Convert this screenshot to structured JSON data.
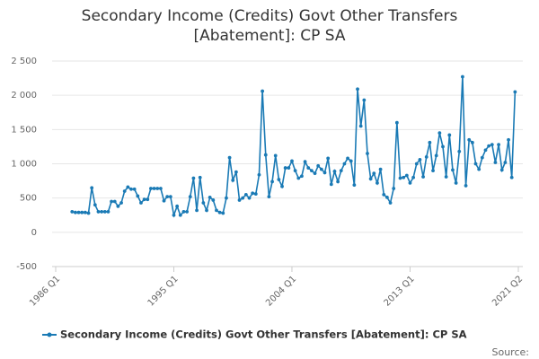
{
  "chart_data": {
    "type": "line",
    "title": [
      "Secondary Income (Credits) Govt Other Transfers",
      "[Abatement]: CP SA"
    ],
    "source": "Source:",
    "x": [
      "1987 Q2",
      "1987 Q3",
      "1987 Q4",
      "1988 Q1",
      "1988 Q2",
      "1988 Q3",
      "1988 Q4",
      "1989 Q1",
      "1989 Q2",
      "1989 Q3",
      "1989 Q4",
      "1990 Q1",
      "1990 Q2",
      "1990 Q3",
      "1990 Q4",
      "1991 Q1",
      "1991 Q2",
      "1991 Q3",
      "1991 Q4",
      "1992 Q1",
      "1992 Q2",
      "1992 Q3",
      "1992 Q4",
      "1993 Q1",
      "1993 Q2",
      "1993 Q3",
      "1993 Q4",
      "1994 Q1",
      "1994 Q2",
      "1994 Q3",
      "1994 Q4",
      "1995 Q1",
      "1995 Q2",
      "1995 Q3",
      "1995 Q4",
      "1996 Q1",
      "1996 Q2",
      "1996 Q3",
      "1996 Q4",
      "1997 Q1",
      "1997 Q2",
      "1997 Q3",
      "1997 Q4",
      "1998 Q1",
      "1998 Q2",
      "1998 Q3",
      "1998 Q4",
      "1999 Q1",
      "1999 Q2",
      "1999 Q3",
      "1999 Q4",
      "2000 Q1",
      "2000 Q2",
      "2000 Q3",
      "2000 Q4",
      "2001 Q1",
      "2001 Q2",
      "2001 Q3",
      "2001 Q4",
      "2002 Q1",
      "2002 Q2",
      "2002 Q3",
      "2002 Q4",
      "2003 Q1",
      "2003 Q2",
      "2003 Q3",
      "2003 Q4",
      "2004 Q1",
      "2004 Q2",
      "2004 Q3",
      "2004 Q4",
      "2005 Q1",
      "2005 Q2",
      "2005 Q3",
      "2005 Q4",
      "2006 Q1",
      "2006 Q2",
      "2006 Q3",
      "2006 Q4",
      "2007 Q1",
      "2007 Q2",
      "2007 Q3",
      "2007 Q4",
      "2008 Q1",
      "2008 Q2",
      "2008 Q3",
      "2008 Q4",
      "2009 Q1",
      "2009 Q2",
      "2009 Q3",
      "2009 Q4",
      "2010 Q1",
      "2010 Q2",
      "2010 Q3",
      "2010 Q4",
      "2011 Q1",
      "2011 Q2",
      "2011 Q3",
      "2011 Q4",
      "2012 Q1",
      "2012 Q2",
      "2012 Q3",
      "2012 Q4",
      "2013 Q1",
      "2013 Q2",
      "2013 Q3",
      "2013 Q4",
      "2014 Q1",
      "2014 Q2",
      "2014 Q3",
      "2014 Q4",
      "2015 Q1",
      "2015 Q2",
      "2015 Q3",
      "2015 Q4",
      "2016 Q1",
      "2016 Q2",
      "2016 Q3",
      "2016 Q4",
      "2017 Q1",
      "2017 Q2",
      "2017 Q3",
      "2017 Q4",
      "2018 Q1",
      "2018 Q2",
      "2018 Q3",
      "2018 Q4",
      "2019 Q1",
      "2019 Q2",
      "2019 Q3",
      "2019 Q4",
      "2020 Q1",
      "2020 Q2",
      "2020 Q3",
      "2020 Q4",
      "2021 Q1"
    ],
    "series": [
      {
        "name": "Secondary Income (Credits) Govt Other Transfers [Abatement]: CP SA",
        "color": "#1a7ab5",
        "values": [
          300,
          290,
          290,
          290,
          290,
          280,
          650,
          400,
          300,
          300,
          300,
          300,
          450,
          450,
          380,
          430,
          600,
          660,
          630,
          630,
          530,
          430,
          480,
          480,
          640,
          640,
          640,
          640,
          460,
          520,
          520,
          250,
          380,
          250,
          300,
          300,
          520,
          790,
          320,
          800,
          430,
          320,
          510,
          470,
          320,
          290,
          280,
          500,
          1090,
          760,
          880,
          470,
          500,
          550,
          500,
          570,
          560,
          840,
          2060,
          1130,
          520,
          740,
          1120,
          770,
          670,
          940,
          940,
          1040,
          900,
          790,
          820,
          1030,
          940,
          900,
          860,
          970,
          920,
          870,
          1080,
          700,
          890,
          740,
          900,
          1000,
          1080,
          1040,
          690,
          2090,
          1550,
          1930,
          1150,
          780,
          860,
          720,
          920,
          550,
          510,
          430,
          640,
          1600,
          790,
          800,
          830,
          720,
          800,
          1000,
          1060,
          810,
          1100,
          1310,
          900,
          1120,
          1450,
          1250,
          810,
          1420,
          910,
          720,
          1180,
          2270,
          680,
          1350,
          1310,
          1000,
          920,
          1090,
          1200,
          1260,
          1280,
          1020,
          1280,
          910,
          1020,
          1350,
          800,
          2050
        ]
      }
    ],
    "xlim": [
      "1986 Q1",
      "2021 Q2"
    ],
    "xticks": [
      "1986 Q1",
      "1995 Q1",
      "2004 Q1",
      "2013 Q1",
      "2021 Q2"
    ],
    "ylim": [
      -500,
      2500
    ],
    "yticks": [
      -500,
      0,
      500,
      {
        "value": 1000,
        "label": "1 000"
      },
      {
        "value": 1500,
        "label": "1 500"
      },
      {
        "value": 2000,
        "label": "2 000"
      },
      {
        "value": 2500,
        "label": "2 500"
      }
    ],
    "grid": true
  }
}
